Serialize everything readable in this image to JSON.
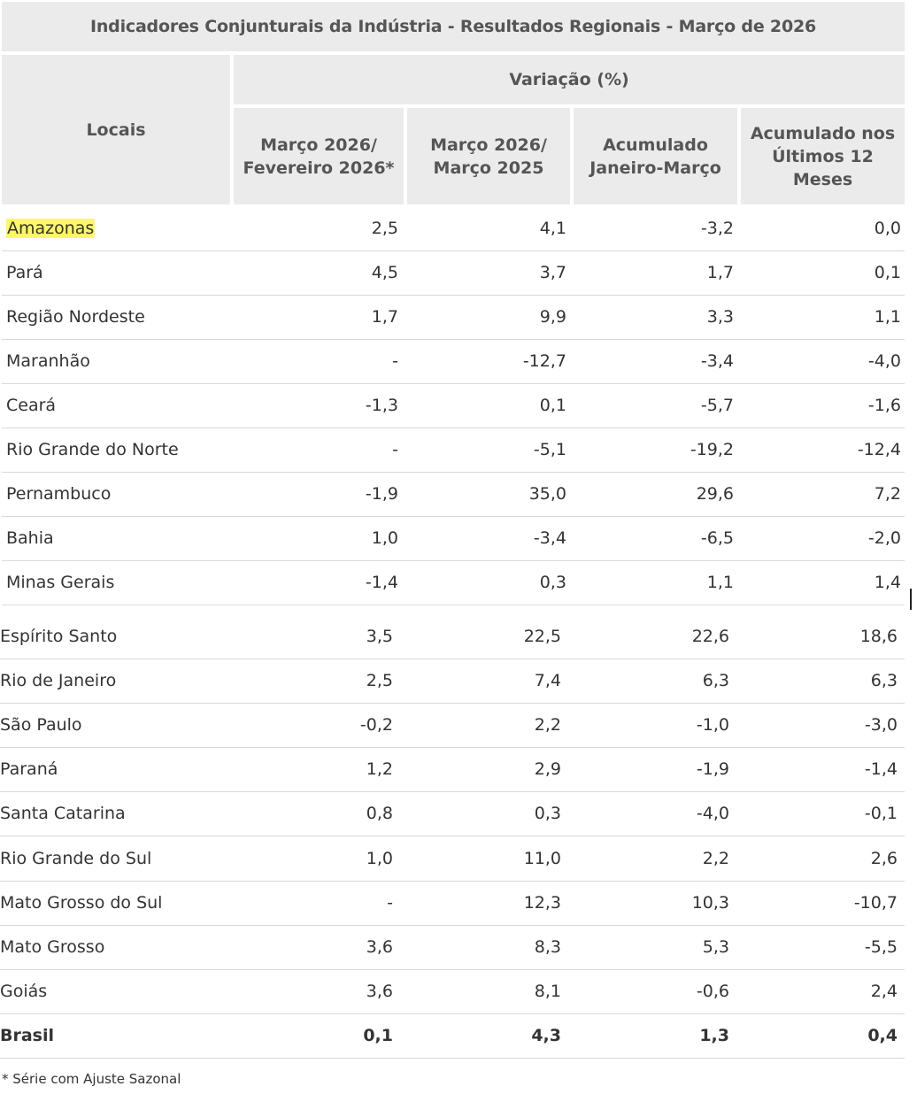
{
  "table": {
    "title": "Indicadores Conjunturais da Indústria - Resultados Regionais - Março de 2026",
    "header": {
      "locais": "Locais",
      "variacao": "Variação (%)",
      "columns": [
        "Março 2026/\nFevereiro  2026*",
        "Março 2026/\nMarço 2025",
        "Acumulado\nJaneiro-Março",
        "Acumulado nos\nÚltimos 12\nMeses"
      ]
    },
    "rows": [
      {
        "local": "Amazonas",
        "values": [
          "2,5",
          "4,1",
          "-3,2",
          "0,0"
        ],
        "highlight": true
      },
      {
        "local": "Pará",
        "values": [
          "4,5",
          "3,7",
          "1,7",
          "0,1"
        ]
      },
      {
        "local": "Região Nordeste",
        "values": [
          "1,7",
          "9,9",
          "3,3",
          "1,1"
        ]
      },
      {
        "local": "Maranhão",
        "values": [
          "-",
          "-12,7",
          "-3,4",
          "-4,0"
        ]
      },
      {
        "local": "Ceará",
        "values": [
          "-1,3",
          "0,1",
          "-5,7",
          "-1,6"
        ]
      },
      {
        "local": "Rio Grande do Norte",
        "values": [
          "-",
          "-5,1",
          "-19,2",
          "-12,4"
        ]
      },
      {
        "local": "Pernambuco",
        "values": [
          "-1,9",
          "35,0",
          "29,6",
          "7,2"
        ]
      },
      {
        "local": "Bahia",
        "values": [
          "1,0",
          "-3,4",
          "-6,5",
          "-2,0"
        ]
      },
      {
        "local": "Minas Gerais",
        "values": [
          "-1,4",
          "0,3",
          "1,1",
          "1,4"
        ]
      },
      {
        "local": "Espírito Santo",
        "values": [
          "3,5",
          "22,5",
          "22,6",
          "18,6"
        ]
      },
      {
        "local": "Rio de Janeiro",
        "values": [
          "2,5",
          "7,4",
          "6,3",
          "6,3"
        ]
      },
      {
        "local": "São Paulo",
        "values": [
          "-0,2",
          "2,2",
          "-1,0",
          "-3,0"
        ]
      },
      {
        "local": "Paraná",
        "values": [
          "1,2",
          "2,9",
          "-1,9",
          "-1,4"
        ]
      },
      {
        "local": "Santa Catarina",
        "values": [
          "0,8",
          "0,3",
          "-4,0",
          "-0,1"
        ]
      },
      {
        "local": "Rio Grande do Sul",
        "values": [
          "1,0",
          "11,0",
          "2,2",
          "2,6"
        ]
      },
      {
        "local": "Mato Grosso do Sul",
        "values": [
          "-",
          "12,3",
          "10,3",
          "-10,7"
        ]
      },
      {
        "local": "Mato Grosso",
        "values": [
          "3,6",
          "8,3",
          "5,3",
          "-5,5"
        ]
      },
      {
        "local": "Goiás",
        "values": [
          "3,6",
          "8,1",
          "-0,6",
          "2,4"
        ]
      },
      {
        "local": "Brasil",
        "values": [
          "0,1",
          "4,3",
          "1,3",
          "0,4"
        ],
        "bold": true
      }
    ],
    "footnote": "* Série com Ajuste Sazonal"
  }
}
